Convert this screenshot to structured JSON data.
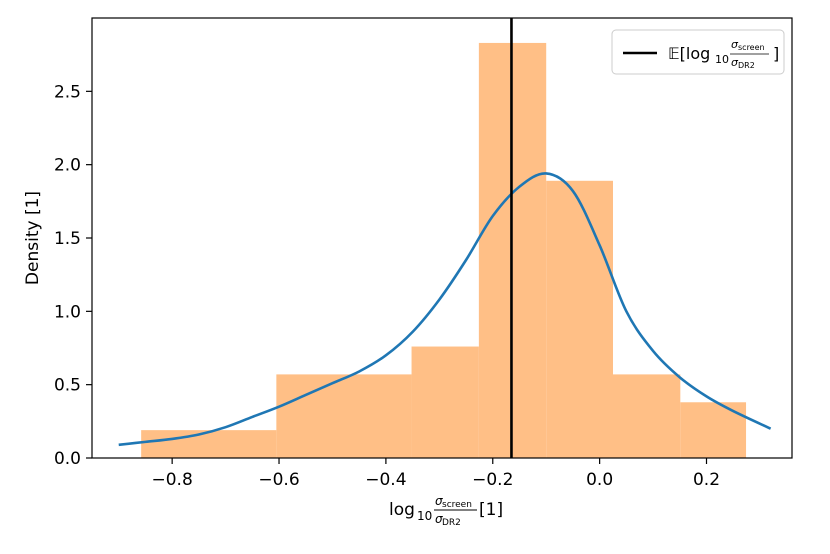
{
  "chart_data": {
    "type": "bar",
    "xlabel": {
      "prefix": "log",
      "sub": "10",
      "num": "σ",
      "num_sub": "screen",
      "den": "σ",
      "den_sub": "DR2",
      "suffix": " [1]"
    },
    "ylabel": "Density [1]",
    "xlim": [
      -0.95,
      0.36
    ],
    "ylim": [
      0,
      3.0
    ],
    "xticks": [
      -0.8,
      -0.6,
      -0.4,
      -0.2,
      0.0,
      0.2
    ],
    "xtick_labels": [
      "−0.8",
      "−0.6",
      "−0.4",
      "−0.2",
      "0.0",
      "0.2"
    ],
    "yticks": [
      0.0,
      0.5,
      1.0,
      1.5,
      2.0,
      2.5
    ],
    "ytick_labels": [
      "0.0",
      "0.5",
      "1.0",
      "1.5",
      "2.0",
      "2.5"
    ],
    "histogram": {
      "color": "#ffbf86",
      "bin_edges": [
        -0.858,
        -0.605,
        -0.352,
        -0.226,
        -0.1,
        0.025,
        0.151,
        0.274
      ],
      "values": [
        0.19,
        0.57,
        0.76,
        2.83,
        1.89,
        0.57,
        0.38
      ]
    },
    "kde": {
      "color": "#1f77b4",
      "x": [
        -0.9,
        -0.85,
        -0.8,
        -0.75,
        -0.7,
        -0.65,
        -0.6,
        -0.55,
        -0.5,
        -0.45,
        -0.4,
        -0.35,
        -0.3,
        -0.25,
        -0.2,
        -0.15,
        -0.1,
        -0.05,
        0.0,
        0.05,
        0.1,
        0.15,
        0.2,
        0.25,
        0.32
      ],
      "y": [
        0.09,
        0.11,
        0.13,
        0.16,
        0.21,
        0.28,
        0.35,
        0.43,
        0.51,
        0.59,
        0.7,
        0.86,
        1.08,
        1.35,
        1.65,
        1.85,
        1.94,
        1.82,
        1.45,
        1.0,
        0.73,
        0.55,
        0.42,
        0.32,
        0.2
      ]
    },
    "mean_line": {
      "x": -0.165,
      "color": "#000000"
    },
    "legend": {
      "placement": "top-right",
      "label": {
        "prefix": "𝔼[log",
        "sub": "10",
        "num": "σ",
        "num_sub": "screen",
        "den": "σ",
        "den_sub": "DR2",
        "suffix": "]"
      }
    }
  }
}
